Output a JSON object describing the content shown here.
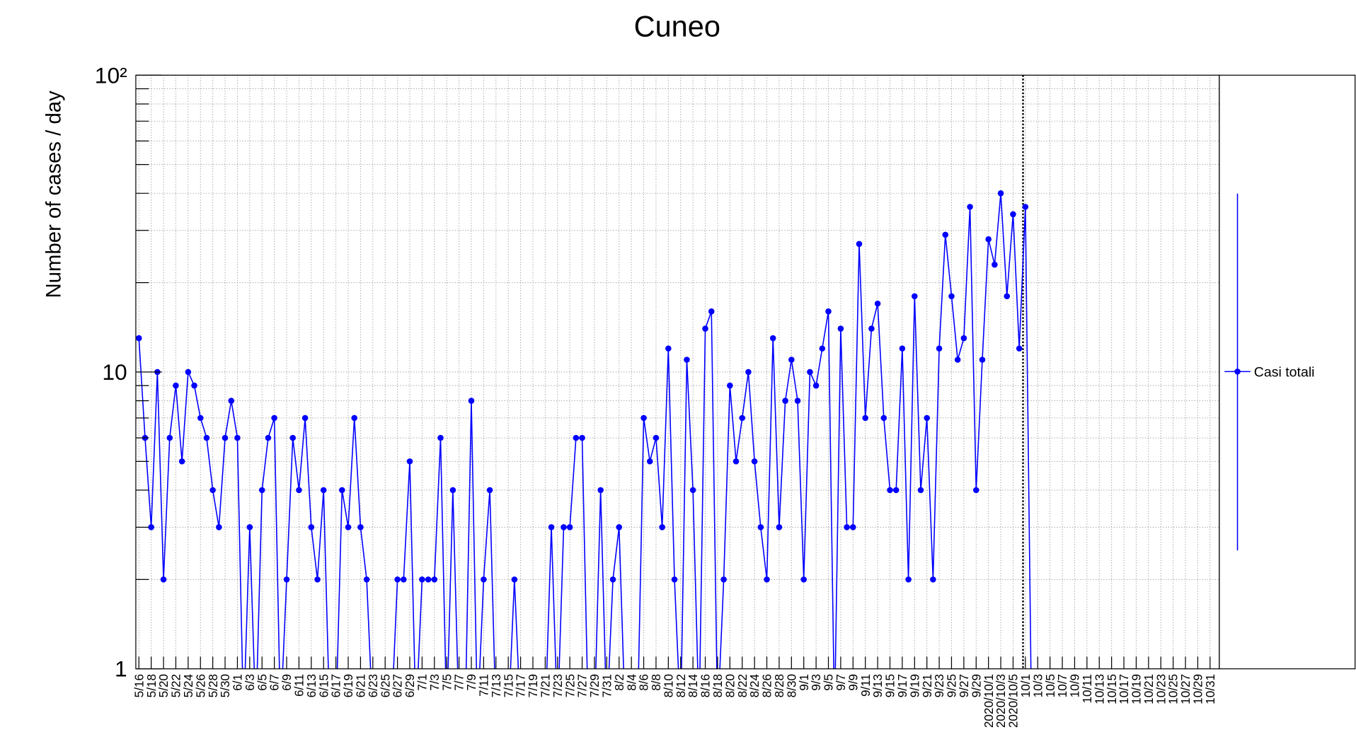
{
  "chart_data": {
    "type": "line",
    "title": "Cuneo",
    "y_label": "Number of cases / day",
    "log_y": true,
    "grid": true,
    "legend": "right",
    "categories": [
      "5/16",
      null,
      "5/18",
      null,
      "5/20",
      null,
      "5/22",
      null,
      "5/24",
      null,
      "5/26",
      null,
      "5/28",
      null,
      "5/30",
      null,
      "6/1",
      null,
      "6/3",
      null,
      "6/5",
      null,
      "6/7",
      null,
      "6/9",
      null,
      "6/11",
      null,
      "6/13",
      null,
      "6/15",
      null,
      "6/17",
      null,
      "6/19",
      null,
      "6/21",
      null,
      "6/23",
      null,
      "6/25",
      null,
      "6/27",
      null,
      "6/29",
      null,
      "7/1",
      null,
      "7/3",
      null,
      "7/5",
      null,
      "7/7",
      null,
      "7/9",
      null,
      "7/11",
      null,
      "7/13",
      null,
      "7/15",
      null,
      "7/17",
      null,
      "7/19",
      null,
      "7/21",
      null,
      "7/23",
      null,
      "7/25",
      null,
      "7/27",
      null,
      "7/29",
      null,
      "7/31",
      null,
      "8/2",
      null,
      "8/4",
      null,
      "8/6",
      null,
      "8/8",
      null,
      "8/10",
      null,
      "8/12",
      null,
      "8/14",
      null,
      "8/16",
      null,
      "8/18",
      null,
      "8/20",
      null,
      "8/22",
      null,
      "8/24",
      null,
      "8/26",
      null,
      "8/28",
      null,
      "8/30",
      null,
      "9/1",
      null,
      "9/3",
      null,
      "9/5",
      null,
      "9/7",
      null,
      "9/9",
      null,
      "9/11",
      null,
      "9/13",
      null,
      "9/15",
      null,
      "9/17",
      null,
      "9/19",
      null,
      "9/21",
      null,
      "9/23",
      null,
      "9/25",
      null,
      "9/27",
      null,
      "9/29",
      null,
      "2020/10/1",
      null,
      "2020/10/3",
      null,
      "2020/10/5",
      null,
      "10/1",
      null,
      "10/3",
      null,
      "10/5",
      null,
      "10/7",
      null,
      "10/9",
      null,
      "10/11",
      null,
      "10/13",
      null,
      "10/15",
      null,
      "10/17",
      null,
      "10/19",
      null,
      "10/21",
      null,
      "10/23",
      null,
      "10/25",
      null,
      "10/27",
      null,
      "10/29",
      null,
      "10/31",
      null
    ],
    "series": [
      {
        "name": "Casi totali",
        "color": "#0000ff",
        "values": [
          13,
          6,
          3,
          10,
          2,
          6,
          9,
          5,
          10,
          9,
          7,
          6,
          4,
          3,
          6,
          8,
          6,
          0,
          3,
          0,
          4,
          6,
          7,
          0,
          2,
          6,
          4,
          7,
          3,
          2,
          4,
          0,
          0,
          4,
          3,
          7,
          3,
          2,
          0,
          0,
          0,
          0,
          2,
          2,
          5,
          0,
          2,
          2,
          2,
          6,
          0,
          4,
          0,
          0,
          8,
          0,
          2,
          4,
          0,
          0,
          0,
          2,
          0,
          0,
          0,
          0,
          0,
          3,
          0,
          3,
          3,
          6,
          6,
          0,
          0,
          4,
          0,
          2,
          3,
          0,
          0,
          0,
          7,
          5,
          6,
          3,
          12,
          2,
          0,
          11,
          4,
          0,
          14,
          16,
          0,
          2,
          9,
          5,
          7,
          10,
          5,
          3,
          2,
          13,
          3,
          8,
          11,
          8,
          2,
          10,
          9,
          12,
          16,
          0,
          14,
          3,
          3,
          27,
          7,
          14,
          17,
          7,
          4,
          4,
          12,
          2,
          18,
          4,
          7,
          2,
          12,
          29,
          18,
          11,
          13,
          36,
          4,
          11,
          28,
          23,
          40,
          18,
          34,
          12,
          36,
          0,
          null,
          null,
          null,
          null,
          null,
          null,
          null,
          null,
          null,
          null,
          null,
          null,
          null,
          null,
          null,
          null,
          null,
          null,
          null,
          null,
          null,
          null,
          null,
          null,
          null,
          null,
          null,
          null,
          null,
          null
        ]
      }
    ],
    "ylim": [
      1,
      100
    ],
    "yticks": [
      1,
      10,
      {
        "value": 100,
        "label": "10²"
      }
    ],
    "yminorticks": [
      2,
      3,
      4,
      5,
      6,
      7,
      8,
      9,
      20,
      30,
      40,
      50,
      60,
      70,
      80,
      90
    ]
  }
}
